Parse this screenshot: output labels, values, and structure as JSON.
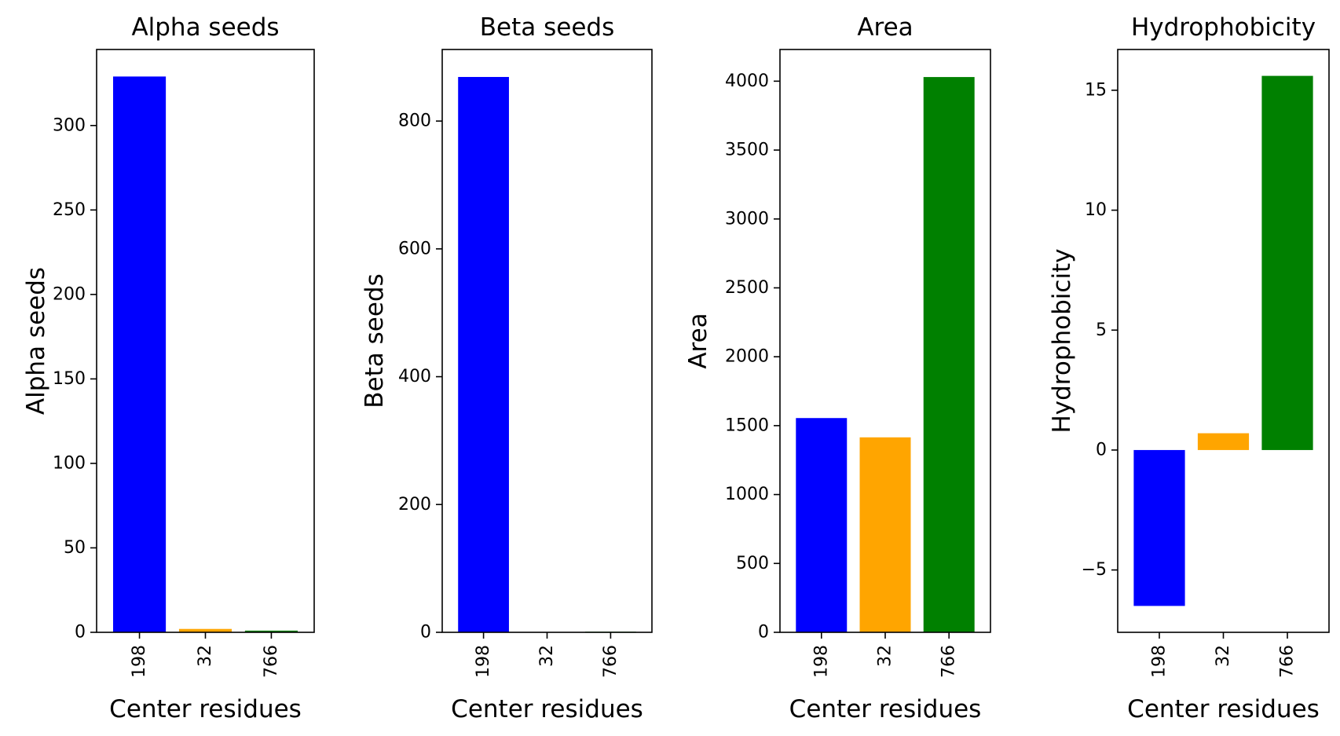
{
  "chart_data": [
    {
      "type": "bar",
      "title": "Alpha seeds",
      "xlabel": "Center residues",
      "ylabel": "Alpha seeds",
      "categories": [
        "198",
        "32",
        "766"
      ],
      "values": [
        329,
        2,
        1
      ],
      "colors": [
        "#0000ff",
        "#ffa500",
        "#008000"
      ],
      "ylim": [
        0,
        345
      ],
      "yticks": [
        0,
        50,
        100,
        150,
        200,
        250,
        300
      ],
      "ytick_labels": [
        "0",
        "50",
        "100",
        "150",
        "200",
        "250",
        "300"
      ],
      "grid": false,
      "legend": "none"
    },
    {
      "type": "bar",
      "title": "Beta seeds",
      "xlabel": "Center residues",
      "ylabel": "Beta seeds",
      "categories": [
        "198",
        "32",
        "766"
      ],
      "values": [
        869,
        0,
        1
      ],
      "colors": [
        "#0000ff",
        "#ffa500",
        "#008000"
      ],
      "ylim": [
        0,
        912
      ],
      "yticks": [
        0,
        200,
        400,
        600,
        800
      ],
      "ytick_labels": [
        "0",
        "200",
        "400",
        "600",
        "800"
      ],
      "grid": false,
      "legend": "none"
    },
    {
      "type": "bar",
      "title": "Area",
      "xlabel": "Center residues",
      "ylabel": "Area",
      "categories": [
        "198",
        "32",
        "766"
      ],
      "values": [
        1555,
        1415,
        4030
      ],
      "colors": [
        "#0000ff",
        "#ffa500",
        "#008000"
      ],
      "ylim": [
        0,
        4230
      ],
      "yticks": [
        0,
        500,
        1000,
        1500,
        2000,
        2500,
        3000,
        3500,
        4000
      ],
      "ytick_labels": [
        "0",
        "500",
        "1000",
        "1500",
        "2000",
        "2500",
        "3000",
        "3500",
        "4000"
      ],
      "grid": false,
      "legend": "none"
    },
    {
      "type": "bar",
      "title": "Hydrophobicity",
      "xlabel": "Center residues",
      "ylabel": "Hydrophobicity",
      "categories": [
        "198",
        "32",
        "766"
      ],
      "values": [
        -6.5,
        0.7,
        15.6
      ],
      "colors": [
        "#0000ff",
        "#ffa500",
        "#008000"
      ],
      "ylim": [
        -7.6,
        16.7
      ],
      "yticks": [
        -5,
        0,
        5,
        10,
        15
      ],
      "ytick_labels": [
        "−5",
        "0",
        "5",
        "10",
        "15"
      ],
      "grid": false,
      "legend": "none"
    }
  ]
}
